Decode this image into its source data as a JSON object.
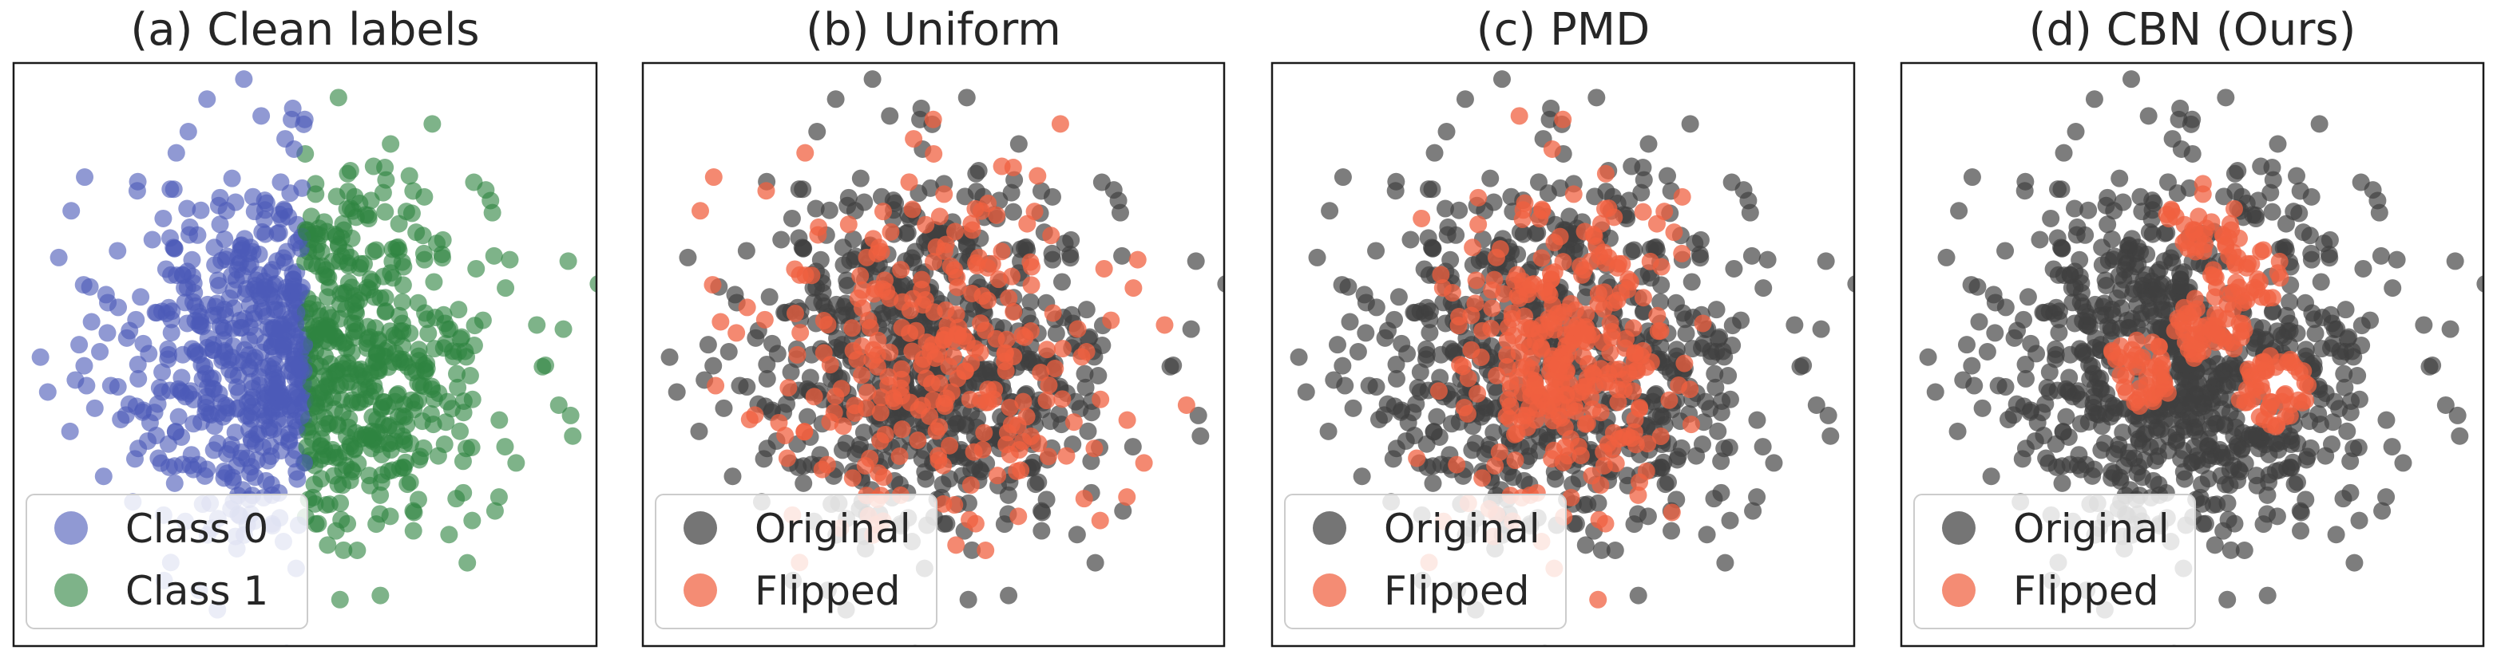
{
  "chart_data": [
    {
      "type": "scatter",
      "title": "(a) Clean labels",
      "xlim": [
        -3.2,
        3.2
      ],
      "ylim": [
        -3.2,
        3.2
      ],
      "axis_ticks": false,
      "legend_position": "lower-left",
      "n_points": 1000,
      "distribution": "2-D standard normal",
      "series": [
        {
          "name": "Class 0",
          "color": "#4c5bb8",
          "rule": "x < 0"
        },
        {
          "name": "Class 1",
          "color": "#2e8540",
          "rule": "x >= 0"
        }
      ]
    },
    {
      "type": "scatter",
      "title": "(b) Uniform",
      "xlim": [
        -3.2,
        3.2
      ],
      "ylim": [
        -3.2,
        3.2
      ],
      "axis_ticks": false,
      "legend_position": "lower-left",
      "n_points": 1000,
      "flip_pattern": "uniform random",
      "flip_rate": 0.3,
      "series": [
        {
          "name": "Original",
          "color": "#404040"
        },
        {
          "name": "Flipped",
          "color": "#f0603f"
        }
      ]
    },
    {
      "type": "scatter",
      "title": "(c) PMD",
      "xlim": [
        -3.2,
        3.2
      ],
      "ylim": [
        -3.2,
        3.2
      ],
      "axis_ticks": false,
      "legend_position": "lower-left",
      "n_points": 1000,
      "flip_pattern": "concentrated near the center (decision boundary)",
      "flip_rate": 0.3,
      "series": [
        {
          "name": "Original",
          "color": "#404040"
        },
        {
          "name": "Flipped",
          "color": "#f0603f"
        }
      ]
    },
    {
      "type": "scatter",
      "title": "(d) CBN (Ours)",
      "xlim": [
        -3.2,
        3.2
      ],
      "ylim": [
        -3.2,
        3.2
      ],
      "axis_ticks": false,
      "legend_position": "lower-left",
      "n_points": 1000,
      "flip_pattern": "tight central clusters",
      "flip_rate": 0.25,
      "series": [
        {
          "name": "Original",
          "color": "#404040"
        },
        {
          "name": "Flipped",
          "color": "#f0603f"
        }
      ]
    }
  ]
}
